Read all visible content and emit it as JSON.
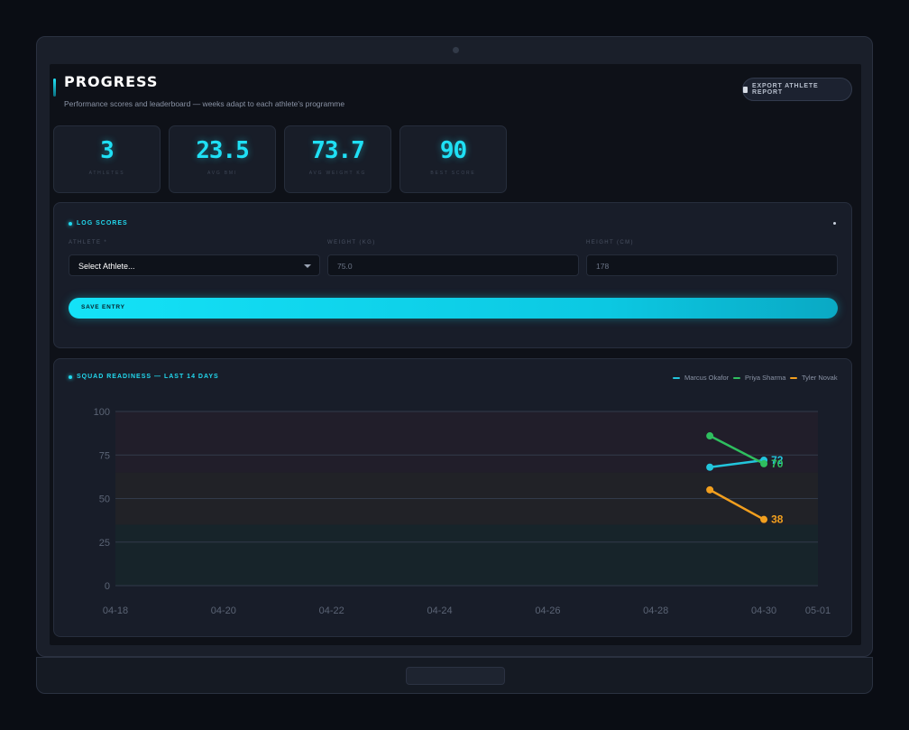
{
  "header": {
    "title": "PROGRESS",
    "subtitle": "Performance scores and leaderboard — weeks adapt to each athlete's programme",
    "export_label": "Export Athlete Report"
  },
  "stats": [
    {
      "value": "3",
      "label": "Athletes"
    },
    {
      "value": "23.5",
      "label": "Avg BMI"
    },
    {
      "value": "73.7",
      "label": "Avg Weight KG"
    },
    {
      "value": "90",
      "label": "Best Score"
    }
  ],
  "log_form": {
    "title": "Log Scores",
    "athlete_label": "Athlete *",
    "athlete_value": "Select Athlete...",
    "weight_label": "Weight (KG)",
    "weight_value": "75.0",
    "height_label": "Height (CM)",
    "height_value": "178",
    "save_label": "Save Entry"
  },
  "readiness": {
    "title": "Squad Readiness — Last 14 Days"
  },
  "colors": {
    "accent": "#1fe0f5",
    "marcus": "#22c5dc",
    "priya": "#2fbf5f",
    "tyler": "#f29f1e"
  },
  "chart_data": {
    "type": "line",
    "title": "Squad Readiness — Last 14 Days",
    "x_ticks": [
      "04-18",
      "04-20",
      "04-22",
      "04-24",
      "04-26",
      "04-28",
      "04-30",
      "05-01"
    ],
    "y_ticks": [
      "100",
      "75",
      "50",
      "25",
      "0"
    ],
    "xlim": [
      "2024-04-18",
      "2024-05-01"
    ],
    "ylim": [
      0,
      100
    ],
    "grid": true,
    "legend_position": "top-right",
    "series": [
      {
        "name": "Marcus Okafor",
        "color": "#22c5dc",
        "points": [
          {
            "x": "2024-04-29",
            "y": 68
          },
          {
            "x": "2024-04-30",
            "y": 72
          }
        ],
        "end_label": "72"
      },
      {
        "name": "Priya Sharma",
        "color": "#2fbf5f",
        "points": [
          {
            "x": "2024-04-29",
            "y": 86
          },
          {
            "x": "2024-04-30",
            "y": 70
          }
        ],
        "end_label": "70"
      },
      {
        "name": "Tyler Novak",
        "color": "#f29f1e",
        "points": [
          {
            "x": "2024-04-29",
            "y": 55
          },
          {
            "x": "2024-04-30",
            "y": 38
          }
        ],
        "end_label": "38"
      }
    ]
  }
}
